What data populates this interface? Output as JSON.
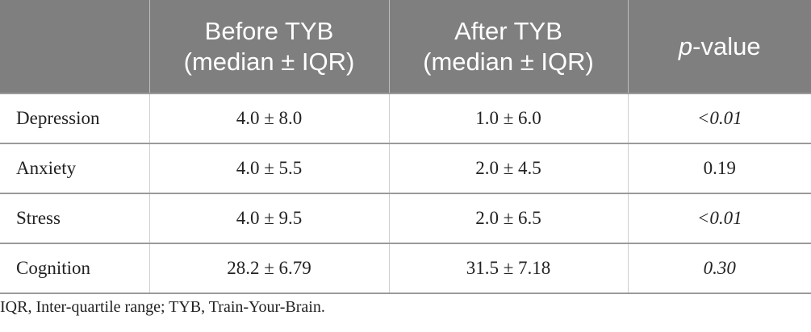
{
  "table": {
    "header": [
      [],
      [
        "Before TYB",
        "(median ± IQR)"
      ],
      [
        "After TYB",
        "(median ± IQR)"
      ],
      [
        "p",
        "-value"
      ]
    ],
    "rows": [
      [
        "Depression",
        "4.0 ± 8.0",
        "1.0 ± 6.0",
        "<0.01"
      ],
      [
        "Anxiety",
        "4.0 ± 5.5",
        "2.0 ± 4.5",
        "0.19"
      ],
      [
        "Stress",
        "4.0 ± 9.5",
        "2.0 ± 6.5",
        "<0.01"
      ],
      [
        "Cognition",
        "28.2 ± 6.79",
        "31.5 ± 7.18",
        "0.30"
      ]
    ],
    "footnote": "IQR, Inter-quartile range; TYB, Train-Your-Brain."
  }
}
